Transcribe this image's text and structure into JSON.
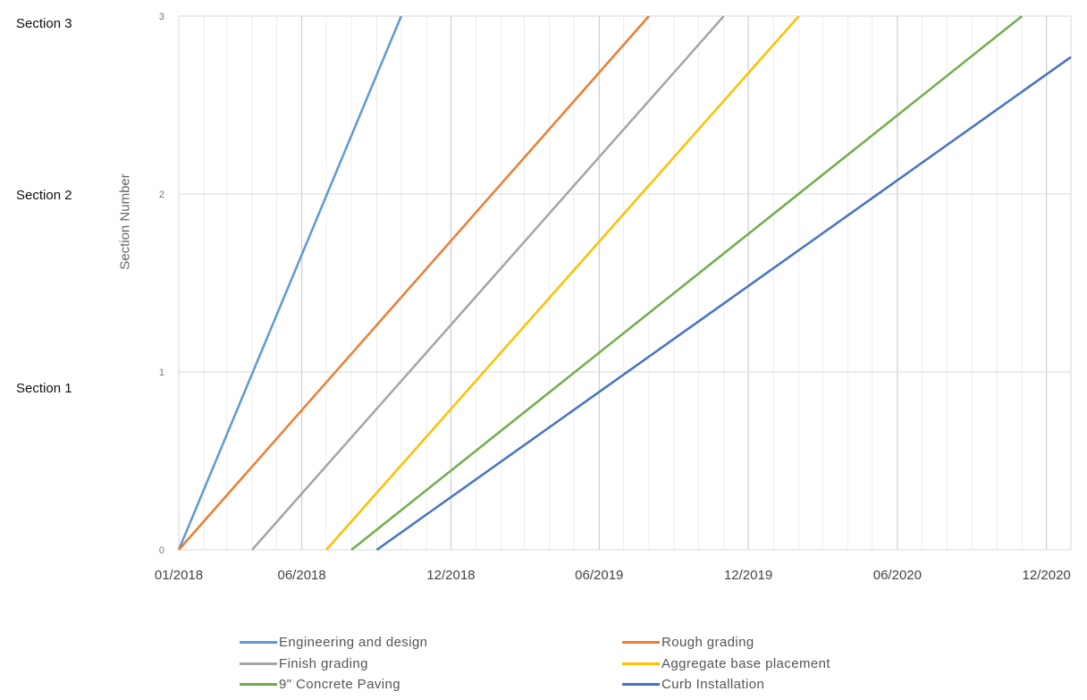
{
  "chart_data": {
    "type": "line",
    "title": "",
    "xlabel": "",
    "ylabel": "Section Number",
    "x_ticks": [
      "01/2018",
      "06/2018",
      "12/2018",
      "06/2019",
      "12/2019",
      "06/2020",
      "12/2020"
    ],
    "y_ticks": [
      "0",
      "1",
      "2",
      "3"
    ],
    "ylim": [
      0,
      3
    ],
    "xlim": [
      "2018-01-01",
      "2020-12-31"
    ],
    "grid": true,
    "legend_position": "bottom",
    "category_labels": [
      "Section 1",
      "Section 2",
      "Section 3"
    ],
    "series": [
      {
        "name": "Engineering and design",
        "color": "#5B9BD5",
        "x": [
          "2018-01-01",
          "2018-10-01"
        ],
        "y": [
          0,
          3
        ]
      },
      {
        "name": "Rough grading",
        "color": "#ED7D31",
        "x": [
          "2018-01-01",
          "2019-08-01"
        ],
        "y": [
          0,
          3
        ]
      },
      {
        "name": "Finish grading",
        "color": "#A5A5A5",
        "x": [
          "2018-04-01",
          "2019-11-01"
        ],
        "y": [
          0,
          3
        ]
      },
      {
        "name": "Aggregate base placement",
        "color": "#FFC000",
        "x": [
          "2018-07-01",
          "2020-02-01"
        ],
        "y": [
          0,
          3
        ]
      },
      {
        "name": "9\" Concrete Paving",
        "color": "#70AD47",
        "x": [
          "2018-08-01",
          "2020-11-01"
        ],
        "y": [
          0,
          3
        ]
      },
      {
        "name": "Curb Installation",
        "color": "#4472C4",
        "x": [
          "2018-09-01",
          "2020-12-31"
        ],
        "y": [
          0,
          2.77
        ]
      }
    ]
  }
}
